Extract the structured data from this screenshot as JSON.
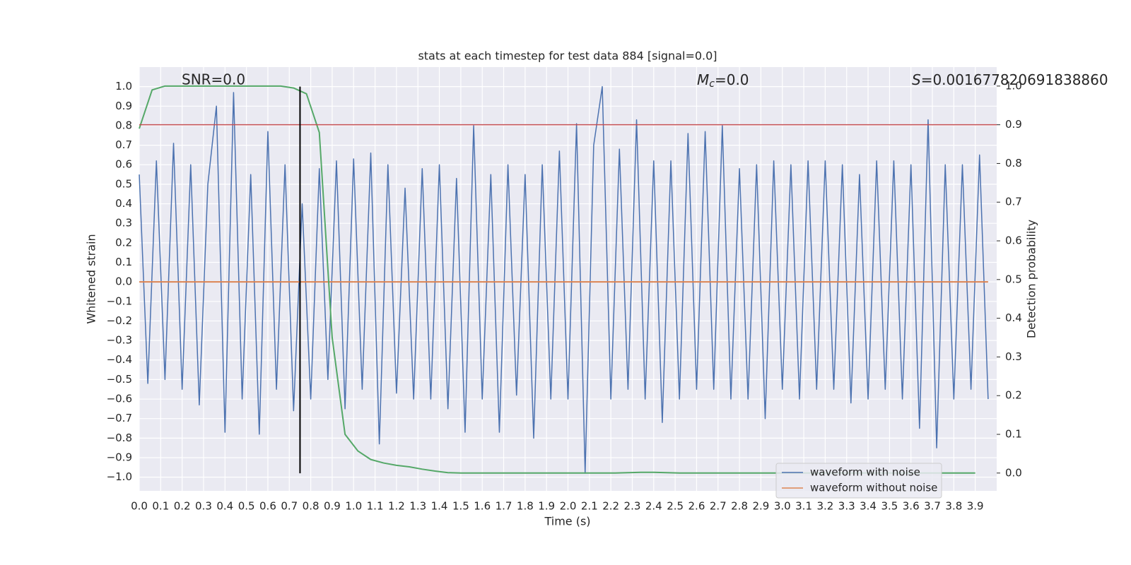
{
  "chart_data": {
    "type": "line",
    "title": "stats at each timestep for test data 884 [signal=0.0]",
    "x_label": "Time (s)",
    "y_label": "Whitened strain",
    "y2_label": "Detection probability",
    "annotations": {
      "snr": "SNR=0.0",
      "mc": {
        "symbol": "M",
        "subscript": "c",
        "text": "=0.0"
      },
      "s": {
        "symbol": "S",
        "text": "=0.001677820691838860"
      }
    },
    "xlim": [
      0,
      4.0
    ],
    "ylim": [
      -1.07,
      1.1
    ],
    "y2lim": [
      -0.046,
      1.049
    ],
    "grid": true,
    "legend": "lower right",
    "x": [
      0,
      0.04,
      0.08,
      0.12,
      0.16,
      0.2,
      0.24,
      0.28,
      0.32,
      0.36,
      0.4,
      0.44,
      0.48,
      0.52,
      0.56,
      0.6,
      0.64,
      0.68,
      0.72,
      0.76,
      0.8,
      0.84,
      0.88,
      0.92,
      0.96,
      1.0,
      1.04,
      1.08,
      1.12,
      1.16,
      1.2,
      1.24,
      1.28,
      1.32,
      1.36,
      1.4,
      1.44,
      1.48,
      1.52,
      1.56,
      1.6,
      1.64,
      1.68,
      1.72,
      1.76,
      1.8,
      1.84,
      1.88,
      1.92,
      1.96,
      2.0,
      2.04,
      2.08,
      2.12,
      2.16,
      2.2,
      2.24,
      2.28,
      2.32,
      2.36,
      2.4,
      2.44,
      2.48,
      2.52,
      2.56,
      2.6,
      2.64,
      2.68,
      2.72,
      2.76,
      2.8,
      2.84,
      2.88,
      2.92,
      2.96,
      3.0,
      3.04,
      3.08,
      3.12,
      3.16,
      3.2,
      3.24,
      3.28,
      3.32,
      3.36,
      3.4,
      3.44,
      3.48,
      3.52,
      3.56,
      3.6,
      3.64,
      3.68,
      3.72,
      3.76,
      3.8,
      3.84,
      3.88,
      3.92,
      3.96
    ],
    "series": [
      {
        "name": "waveform with noise",
        "color": "#4c72b0",
        "values": [
          0.55,
          -0.52,
          0.62,
          -0.5,
          0.71,
          -0.55,
          0.6,
          -0.63,
          0.5,
          0.9,
          -0.77,
          0.97,
          -0.6,
          0.55,
          -0.78,
          0.77,
          -0.55,
          0.6,
          -0.66,
          0.4,
          -0.6,
          0.58,
          -0.5,
          0.62,
          -0.65,
          0.63,
          -0.55,
          0.66,
          -0.83,
          0.6,
          -0.57,
          0.48,
          -0.6,
          0.58,
          -0.6,
          0.6,
          -0.65,
          0.53,
          -0.77,
          0.8,
          -0.6,
          0.55,
          -0.77,
          0.6,
          -0.58,
          0.55,
          -0.8,
          0.6,
          -0.6,
          0.67,
          -0.6,
          0.81,
          -0.98,
          0.7,
          1.0,
          -0.6,
          0.68,
          -0.55,
          0.83,
          -0.6,
          0.62,
          -0.72,
          0.62,
          -0.6,
          0.76,
          -0.55,
          0.77,
          -0.55,
          0.8,
          -0.6,
          0.58,
          -0.6,
          0.6,
          -0.7,
          0.62,
          -0.55,
          0.6,
          -0.6,
          0.62,
          -0.55,
          0.62,
          -0.55,
          0.6,
          -0.62,
          0.55,
          -0.6,
          0.62,
          -0.55,
          0.62,
          -0.6,
          0.6,
          -0.75,
          0.83,
          -0.85,
          0.6,
          -0.6,
          0.6,
          -0.55,
          0.65,
          -0.6
        ]
      },
      {
        "name": "waveform without noise",
        "color": "#dd8452",
        "values": [
          0,
          0,
          0,
          0,
          0,
          0,
          0,
          0,
          0,
          0,
          0,
          0,
          0,
          0,
          0,
          0,
          0,
          0,
          0,
          0,
          0,
          0,
          0,
          0,
          0,
          0,
          0,
          0,
          0,
          0,
          0,
          0,
          0,
          0,
          0,
          0,
          0,
          0,
          0,
          0,
          0,
          0,
          0,
          0,
          0,
          0,
          0,
          0,
          0,
          0,
          0,
          0,
          0,
          0,
          0,
          0,
          0,
          0,
          0,
          0,
          0,
          0,
          0,
          0,
          0,
          0,
          0,
          0,
          0,
          0,
          0,
          0,
          0,
          0,
          0,
          0,
          0,
          0,
          0,
          0,
          0,
          0,
          0,
          0,
          0,
          0,
          0,
          0,
          0,
          0,
          0,
          0,
          0,
          0,
          0,
          0,
          0,
          0,
          0,
          0
        ]
      },
      {
        "color": "#55a868",
        "axis": "y2",
        "x": [
          0,
          0.06,
          0.12,
          0.18,
          0.24,
          0.3,
          0.36,
          0.42,
          0.48,
          0.54,
          0.6,
          0.66,
          0.72,
          0.78,
          0.84,
          0.9,
          0.96,
          1.02,
          1.08,
          1.14,
          1.2,
          1.26,
          1.32,
          1.38,
          1.44,
          1.5,
          1.56,
          1.62,
          1.68,
          1.74,
          1.8,
          1.86,
          1.92,
          1.98,
          2.04,
          2.1,
          2.16,
          2.22,
          2.28,
          2.34,
          2.4,
          2.46,
          2.52,
          2.58,
          2.64,
          2.7,
          2.76,
          2.82,
          2.88,
          2.94,
          3.0,
          3.06,
          3.12,
          3.18,
          3.24,
          3.3,
          3.36,
          3.42,
          3.48,
          3.54,
          3.6,
          3.66,
          3.72,
          3.78,
          3.84,
          3.9
        ],
        "values": [
          0.89,
          0.99,
          1.0,
          1.0,
          1.0,
          1.0,
          1.0,
          1.0,
          1.0,
          1.0,
          1.0,
          1.0,
          0.995,
          0.98,
          0.88,
          0.35,
          0.1,
          0.057,
          0.035,
          0.026,
          0.02,
          0.016,
          0.01,
          0.005,
          0.001,
          0,
          0,
          0,
          0,
          0,
          0,
          0,
          0,
          0,
          0,
          0,
          0,
          0,
          0.001,
          0.002,
          0.002,
          0.001,
          0,
          0,
          0,
          0,
          0,
          0,
          0,
          0,
          0,
          0,
          0,
          0,
          0,
          0,
          0,
          0,
          0,
          0,
          0,
          0,
          0,
          0,
          0,
          0
        ]
      }
    ],
    "threshold": {
      "y2": 0.9,
      "color": "#c44e52"
    },
    "marker_line": {
      "x": 0.75,
      "y": [
        -0.98,
        1.0
      ],
      "color": "#000000"
    },
    "xticks": [
      {
        "value": 0,
        "label": "0.0"
      },
      {
        "value": 0.1,
        "label": "0.1"
      },
      {
        "value": 0.2,
        "label": "0.2"
      },
      {
        "value": 0.3,
        "label": "0.3"
      },
      {
        "value": 0.4,
        "label": "0.4"
      },
      {
        "value": 0.5,
        "label": "0.5"
      },
      {
        "value": 0.6,
        "label": "0.6"
      },
      {
        "value": 0.7,
        "label": "0.7"
      },
      {
        "value": 0.8,
        "label": "0.8"
      },
      {
        "value": 0.9,
        "label": "0.9"
      },
      {
        "value": 1,
        "label": "1.0"
      },
      {
        "value": 1.1,
        "label": "1.1"
      },
      {
        "value": 1.2,
        "label": "1.2"
      },
      {
        "value": 1.3,
        "label": "1.3"
      },
      {
        "value": 1.4,
        "label": "1.4"
      },
      {
        "value": 1.5,
        "label": "1.5"
      },
      {
        "value": 1.6,
        "label": "1.6"
      },
      {
        "value": 1.7,
        "label": "1.7"
      },
      {
        "value": 1.8,
        "label": "1.8"
      },
      {
        "value": 1.9,
        "label": "1.9"
      },
      {
        "value": 2,
        "label": "2.0"
      },
      {
        "value": 2.1,
        "label": "2.1"
      },
      {
        "value": 2.2,
        "label": "2.2"
      },
      {
        "value": 2.3,
        "label": "2.3"
      },
      {
        "value": 2.4,
        "label": "2.4"
      },
      {
        "value": 2.5,
        "label": "2.5"
      },
      {
        "value": 2.6,
        "label": "2.6"
      },
      {
        "value": 2.7,
        "label": "2.7"
      },
      {
        "value": 2.8,
        "label": "2.8"
      },
      {
        "value": 2.9,
        "label": "2.9"
      },
      {
        "value": 3,
        "label": "3.0"
      },
      {
        "value": 3.1,
        "label": "3.1"
      },
      {
        "value": 3.2,
        "label": "3.2"
      },
      {
        "value": 3.3,
        "label": "3.3"
      },
      {
        "value": 3.4,
        "label": "3.4"
      },
      {
        "value": 3.5,
        "label": "3.5"
      },
      {
        "value": 3.6,
        "label": "3.6"
      },
      {
        "value": 3.7,
        "label": "3.7"
      },
      {
        "value": 3.8,
        "label": "3.8"
      },
      {
        "value": 3.9,
        "label": "3.9"
      }
    ],
    "yticks": [
      {
        "value": -1,
        "label": "−1.0"
      },
      {
        "value": -0.9,
        "label": "−0.9"
      },
      {
        "value": -0.8,
        "label": "−0.8"
      },
      {
        "value": -0.7,
        "label": "−0.7"
      },
      {
        "value": -0.6,
        "label": "−0.6"
      },
      {
        "value": -0.5,
        "label": "−0.5"
      },
      {
        "value": -0.4,
        "label": "−0.4"
      },
      {
        "value": -0.3,
        "label": "−0.3"
      },
      {
        "value": -0.2,
        "label": "−0.2"
      },
      {
        "value": -0.1,
        "label": "−0.1"
      },
      {
        "value": 0,
        "label": "0.0"
      },
      {
        "value": 0.1,
        "label": "0.1"
      },
      {
        "value": 0.2,
        "label": "0.2"
      },
      {
        "value": 0.3,
        "label": "0.3"
      },
      {
        "value": 0.4,
        "label": "0.4"
      },
      {
        "value": 0.5,
        "label": "0.5"
      },
      {
        "value": 0.6,
        "label": "0.6"
      },
      {
        "value": 0.7,
        "label": "0.7"
      },
      {
        "value": 0.8,
        "label": "0.8"
      },
      {
        "value": 0.9,
        "label": "0.9"
      },
      {
        "value": 1,
        "label": "1.0"
      }
    ],
    "y2ticks": [
      {
        "value": 0,
        "label": "0.0"
      },
      {
        "value": 0.1,
        "label": "0.1"
      },
      {
        "value": 0.2,
        "label": "0.2"
      },
      {
        "value": 0.3,
        "label": "0.3"
      },
      {
        "value": 0.4,
        "label": "0.4"
      },
      {
        "value": 0.5,
        "label": "0.5"
      },
      {
        "value": 0.6,
        "label": "0.6"
      },
      {
        "value": 0.7,
        "label": "0.7"
      },
      {
        "value": 0.8,
        "label": "0.8"
      },
      {
        "value": 0.9,
        "label": "0.9"
      },
      {
        "value": 1,
        "label": "1.0"
      }
    ]
  }
}
